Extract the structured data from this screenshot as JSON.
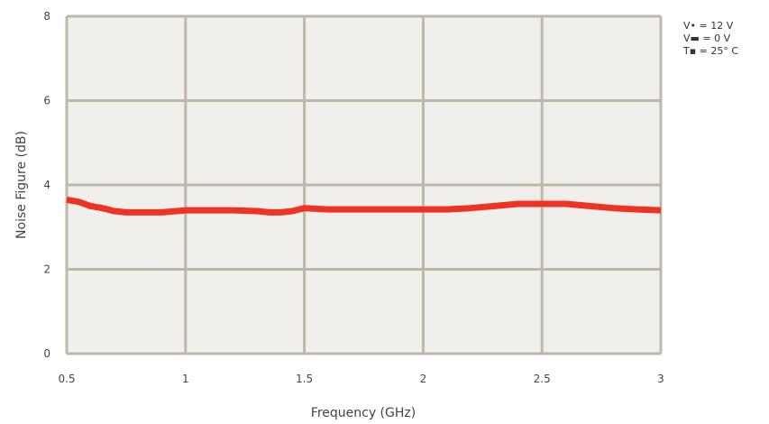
{
  "chart_data": {
    "type": "line",
    "title": "",
    "xlabel": "Frequency (GHz)",
    "ylabel": "Noise Figure (dB)",
    "xlim": [
      0.5,
      3
    ],
    "ylim": [
      0,
      8
    ],
    "xticks": [
      0.5,
      1,
      1.5,
      2,
      2.5,
      3
    ],
    "xtick_labels": [
      "0.5",
      "1",
      "1.5",
      "2",
      "2.5",
      "3"
    ],
    "yticks": [
      0,
      2,
      4,
      6,
      8
    ],
    "ytick_labels": [
      "0",
      "2",
      "4",
      "6",
      "8"
    ],
    "grid": true,
    "series": [
      {
        "name": "",
        "color": "#ee3322",
        "x": [
          0.5,
          0.55,
          0.6,
          0.65,
          0.7,
          0.75,
          0.8,
          0.9,
          1.0,
          1.1,
          1.2,
          1.3,
          1.35,
          1.4,
          1.45,
          1.5,
          1.6,
          1.7,
          1.8,
          1.9,
          2.0,
          2.1,
          2.2,
          2.3,
          2.4,
          2.5,
          2.6,
          2.7,
          2.8,
          2.9,
          3.0
        ],
        "y": [
          3.65,
          3.6,
          3.5,
          3.45,
          3.38,
          3.35,
          3.35,
          3.35,
          3.4,
          3.4,
          3.4,
          3.38,
          3.35,
          3.35,
          3.38,
          3.45,
          3.42,
          3.42,
          3.42,
          3.42,
          3.42,
          3.42,
          3.45,
          3.5,
          3.55,
          3.55,
          3.55,
          3.5,
          3.45,
          3.42,
          3.4
        ]
      }
    ],
    "legend_position": "top-right"
  },
  "legend_text": {
    "line1": "V• = 12 V",
    "line2": "V▬ = 0 V",
    "line3": "T▪ = 25° C"
  }
}
